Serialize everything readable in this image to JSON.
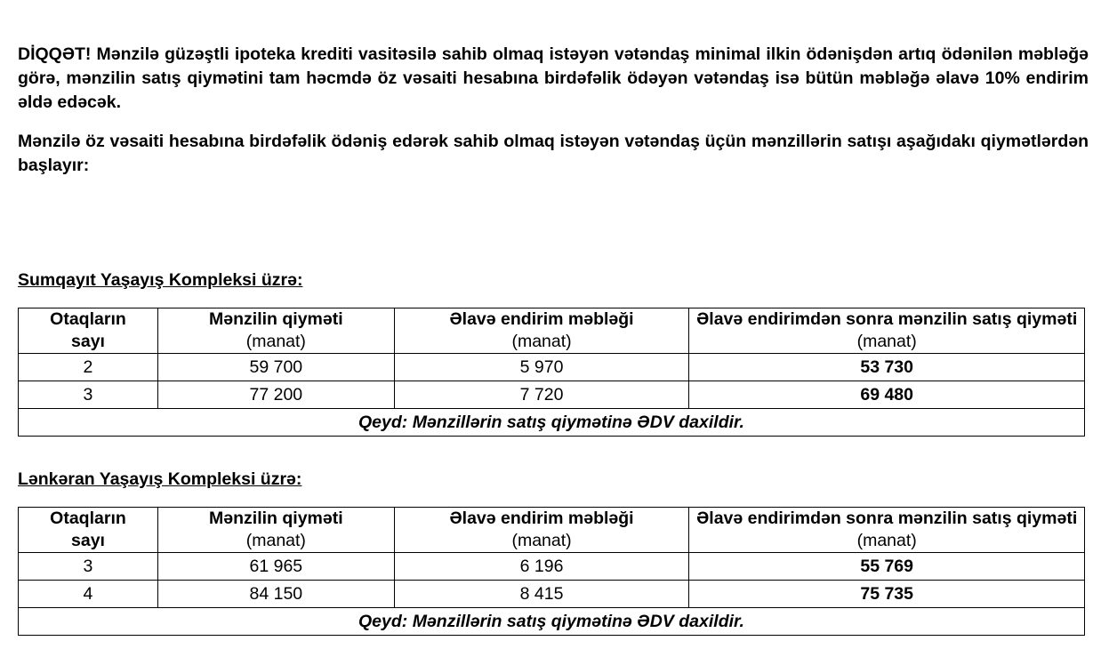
{
  "notice": {
    "lead": "DİQQƏT!",
    "text": " Mənzilə güzəştli ipoteka krediti vasitəsilə sahib olmaq istəyən vətəndaş minimal ilkin ödənişdən artıq ödənilən məbləğə görə, mənzilin satış qiymətini tam həcmdə öz vəsaiti hesabına birdəfəlik ödəyən vətəndaş isə bütün məbləğə əlavə 10% endirim əldə edəcək."
  },
  "intro": "Mənzilə öz vəsaiti hesabına birdəfəlik ödəniş edərək sahib olmaq istəyən vətəndaş üçün mənzillərin satışı aşağıdakı qiymətlərdən başlayır:",
  "headers": {
    "rooms": "Otaqların sayı",
    "price": "Mənzilin qiyməti",
    "discount": "Əlavə endirim məbləği",
    "final": "Əlavə endirimdən sonra mənzilin satış qiyməti",
    "unit": "(manat)"
  },
  "tables": [
    {
      "title": "Sumqayıt Yaşayış Kompleksi üzrə:",
      "rows": [
        {
          "rooms": "2",
          "price": "59 700",
          "discount": "5 970",
          "final": "53 730"
        },
        {
          "rooms": "3",
          "price": "77 200",
          "discount": "7 720",
          "final": "69 480"
        }
      ],
      "note": "Qeyd: Mənzillərin satış qiymətinə ƏDV daxildir."
    },
    {
      "title": "Lənkəran Yaşayış Kompleksi üzrə:",
      "rows": [
        {
          "rooms": "3",
          "price": "61 965",
          "discount": "6 196",
          "final": "55 769"
        },
        {
          "rooms": "4",
          "price": "84 150",
          "discount": "8 415",
          "final": "75 735"
        }
      ],
      "note": "Qeyd: Mənzillərin satış qiymətinə ƏDV daxildir."
    }
  ]
}
